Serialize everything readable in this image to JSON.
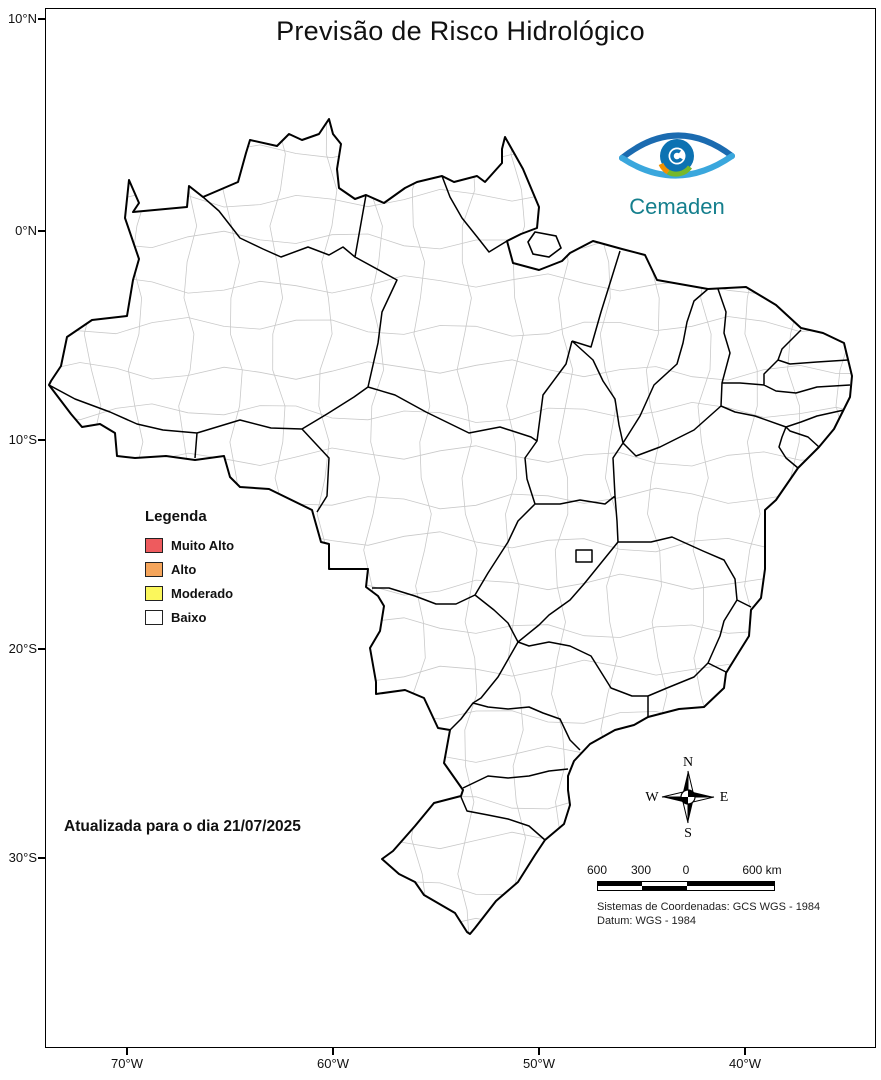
{
  "title": "Previsão de Risco Hidrológico",
  "logo": {
    "wordmark": "Cemaden"
  },
  "legend": {
    "title": "Legenda",
    "items": [
      {
        "label": "Muito Alto",
        "color": "#ee5b5e"
      },
      {
        "label": "Alto",
        "color": "#f5a55b"
      },
      {
        "label": "Moderado",
        "color": "#fbf75c"
      },
      {
        "label": "Baixo",
        "color": "#ffffff"
      }
    ]
  },
  "update_note": "Atualizada para o dia 21/07/2025",
  "axes": {
    "lat_labels": [
      "10°N",
      "0°N",
      "10°S",
      "20°S",
      "30°S"
    ],
    "lon_labels": [
      "70°W",
      "60°W",
      "50°W",
      "40°W"
    ]
  },
  "compass": {
    "n": "N",
    "s": "S",
    "e": "E",
    "w": "W"
  },
  "scale_bar": {
    "labels": [
      "600",
      "300",
      "0",
      "600 km"
    ]
  },
  "footnotes": [
    "Sistemas de Coordenadas: GCS WGS - 1984",
    "Datum: WGS - 1984"
  ]
}
